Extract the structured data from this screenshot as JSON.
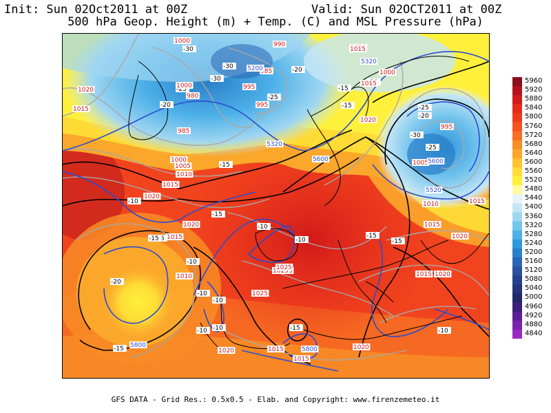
{
  "header": {
    "init": "Init: Sun 02Oct2011 at 00Z",
    "valid": "Valid: Sun 02OCT2011 at 00Z",
    "subtitle": "500 hPa Geop. Height (m) + Temp. (C) and MSL Pressure (hPa)"
  },
  "footer": "GFS DATA - Grid Res.: 0.5x0.5 - Elab. and Copyright: www.firenzemeteo.it",
  "colorbar": {
    "levels": [
      "5960",
      "5920",
      "5880",
      "5840",
      "5800",
      "5760",
      "5720",
      "5680",
      "5640",
      "5600",
      "5560",
      "5520",
      "5480",
      "5440",
      "5400",
      "5360",
      "5320",
      "5280",
      "5240",
      "5200",
      "5160",
      "5120",
      "5080",
      "5040",
      "5000",
      "4960",
      "4920",
      "4880",
      "4840"
    ],
    "colors": [
      "#8a0f1a",
      "#b3121c",
      "#d11a1a",
      "#e52b1b",
      "#ef3a1e",
      "#f4531f",
      "#f66e22",
      "#f88c26",
      "#fba72b",
      "#fdc22f",
      "#fedb35",
      "#fff03c",
      "#fffaa0",
      "#e6f4f8",
      "#c5e6f5",
      "#9fd6f2",
      "#74c4ee",
      "#4cb0e8",
      "#2f97dc",
      "#2b7ec8",
      "#2a66b4",
      "#2a51a0",
      "#26418c",
      "#233479",
      "#202865",
      "#3b1f7a",
      "#5a1f95",
      "#7a22ab",
      "#9a28c3"
    ]
  },
  "temp_labels": [
    {
      "text": "-30"
    },
    {
      "text": "-30"
    },
    {
      "text": "-30"
    },
    {
      "text": "-25"
    },
    {
      "text": "-20"
    },
    {
      "text": "-25"
    },
    {
      "text": "-20"
    },
    {
      "text": "-15"
    },
    {
      "text": "-15"
    },
    {
      "text": "-20"
    },
    {
      "text": "-25"
    },
    {
      "text": "-30"
    },
    {
      "text": "-25"
    },
    {
      "text": "-20"
    },
    {
      "text": "-15"
    },
    {
      "text": "-10"
    },
    {
      "text": "-15"
    },
    {
      "text": "-15"
    },
    {
      "text": "-10"
    },
    {
      "text": "-10"
    },
    {
      "text": "-15"
    },
    {
      "text": "-20"
    },
    {
      "text": "-10"
    },
    {
      "text": "-10"
    },
    {
      "text": "-10"
    },
    {
      "text": "-10"
    },
    {
      "text": "-15"
    },
    {
      "text": "-15"
    },
    {
      "text": "-15"
    },
    {
      "text": "-10"
    },
    {
      "text": "-10"
    },
    {
      "text": "-15"
    }
  ],
  "pressure_labels": [
    {
      "text": "1000"
    },
    {
      "text": "990"
    },
    {
      "text": "985"
    },
    {
      "text": "995"
    },
    {
      "text": "1000"
    },
    {
      "text": "980"
    },
    {
      "text": "995"
    },
    {
      "text": "985"
    },
    {
      "text": "1020"
    },
    {
      "text": "1015"
    },
    {
      "text": "1000"
    },
    {
      "text": "1005"
    },
    {
      "text": "1010"
    },
    {
      "text": "1015"
    },
    {
      "text": "1020"
    },
    {
      "text": "1020"
    },
    {
      "text": "1015"
    },
    {
      "text": "1010"
    },
    {
      "text": "1025"
    },
    {
      "text": "1025"
    },
    {
      "text": "1020"
    },
    {
      "text": "1015"
    },
    {
      "text": "1015"
    },
    {
      "text": "1020"
    },
    {
      "text": "1015"
    },
    {
      "text": "1020"
    },
    {
      "text": "1000"
    },
    {
      "text": "995"
    },
    {
      "text": "1005"
    },
    {
      "text": "1010"
    },
    {
      "text": "1015"
    },
    {
      "text": "1020"
    },
    {
      "text": "1015"
    },
    {
      "text": "1020"
    },
    {
      "text": "1025"
    },
    {
      "text": "1015"
    },
    {
      "text": "1015"
    },
    {
      "text": "1025"
    },
    {
      "text": "1020"
    }
  ],
  "height_labels": [
    {
      "text": "5320"
    },
    {
      "text": "5200"
    },
    {
      "text": "5320"
    },
    {
      "text": "5600"
    },
    {
      "text": "5520"
    },
    {
      "text": "5600"
    },
    {
      "text": "5800"
    },
    {
      "text": "5800"
    }
  ]
}
